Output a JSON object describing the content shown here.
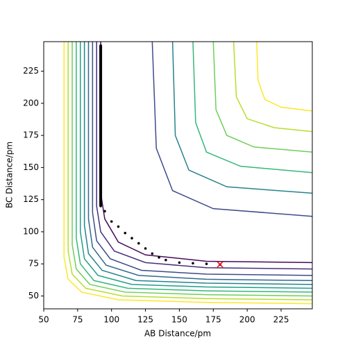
{
  "chart_data": {
    "type": "contour",
    "xlabel": "AB Distance/pm",
    "ylabel": "BC Distance/pm",
    "xlim": [
      50,
      248
    ],
    "ylim": [
      40,
      248
    ],
    "xticks": [
      50,
      75,
      100,
      125,
      150,
      175,
      200,
      225
    ],
    "yticks": [
      50,
      75,
      100,
      125,
      150,
      175,
      200,
      225
    ],
    "contours": [
      {
        "color": "#46085c",
        "x": [
          92,
          92,
          95,
          105,
          125,
          170,
          248
        ],
        "y": [
          248,
          130,
          110,
          92,
          82,
          77,
          76
        ]
      },
      {
        "color": "#472f7d",
        "x": [
          89,
          89,
          92,
          102,
          125,
          170,
          248
        ],
        "y": [
          248,
          120,
          100,
          85,
          76,
          72,
          71
        ]
      },
      {
        "color": "#3e4a89",
        "x": [
          86,
          86,
          89,
          99,
          122,
          170,
          248
        ],
        "y": [
          248,
          115,
          93,
          79,
          70,
          67,
          66
        ]
      },
      {
        "color": "#31688e",
        "x": [
          83,
          83,
          86,
          96,
          120,
          170,
          248
        ],
        "y": [
          248,
          110,
          88,
          74,
          66,
          63,
          62
        ]
      },
      {
        "color": "#26828e",
        "x": [
          80,
          80,
          83,
          93,
          118,
          170,
          248
        ],
        "y": [
          248,
          105,
          83,
          70,
          62,
          60,
          59
        ]
      },
      {
        "color": "#1f9e89",
        "x": [
          77,
          77,
          80,
          90,
          115,
          170,
          248
        ],
        "y": [
          248,
          100,
          79,
          66,
          59,
          57,
          56
        ]
      },
      {
        "color": "#35b779",
        "x": [
          74,
          74,
          77,
          87,
          112,
          170,
          248
        ],
        "y": [
          248,
          95,
          75,
          62,
          56,
          54,
          53
        ]
      },
      {
        "color": "#6ece58",
        "x": [
          71,
          71,
          74,
          84,
          110,
          170,
          248
        ],
        "y": [
          248,
          90,
          71,
          59,
          53,
          51,
          50
        ]
      },
      {
        "color": "#b5de2b",
        "x": [
          68,
          68,
          71,
          81,
          108,
          170,
          248
        ],
        "y": [
          248,
          85,
          67,
          56,
          50,
          48,
          47
        ]
      },
      {
        "color": "#fde725",
        "x": [
          65,
          65,
          68,
          78,
          105,
          170,
          248
        ],
        "y": [
          248,
          80,
          63,
          53,
          47,
          45,
          44
        ]
      },
      {
        "color": "#fde725",
        "x": [
          207,
          208,
          213,
          225,
          248
        ],
        "y": [
          248,
          218,
          203,
          197,
          194
        ]
      },
      {
        "color": "#b5de2b",
        "x": [
          190,
          192,
          200,
          220,
          248
        ],
        "y": [
          248,
          205,
          188,
          181,
          178
        ]
      },
      {
        "color": "#6ece58",
        "x": [
          175,
          177,
          185,
          205,
          248
        ],
        "y": [
          248,
          195,
          175,
          166,
          162
        ]
      },
      {
        "color": "#35b779",
        "x": [
          160,
          162,
          170,
          195,
          248
        ],
        "y": [
          248,
          185,
          162,
          151,
          146
        ]
      },
      {
        "color": "#26828e",
        "x": [
          145,
          147,
          157,
          185,
          248
        ],
        "y": [
          248,
          175,
          148,
          135,
          130
        ]
      },
      {
        "color": "#3e4a89",
        "x": [
          130,
          133,
          145,
          175,
          248
        ],
        "y": [
          248,
          165,
          132,
          118,
          112
        ]
      }
    ],
    "trajectory": {
      "color": "#000000",
      "x": [
        92,
        92,
        92,
        92,
        92,
        95,
        100,
        105,
        110,
        115,
        120,
        125,
        130,
        135,
        140,
        150,
        160,
        170,
        180
      ],
      "y": [
        245,
        200,
        160,
        130,
        120,
        116,
        108,
        104,
        99,
        95,
        91,
        87,
        83,
        80,
        78,
        76,
        75.5,
        75,
        74.5
      ]
    },
    "end_marker": {
      "color": "#ff0000",
      "x": 180,
      "y": 74.5
    }
  }
}
